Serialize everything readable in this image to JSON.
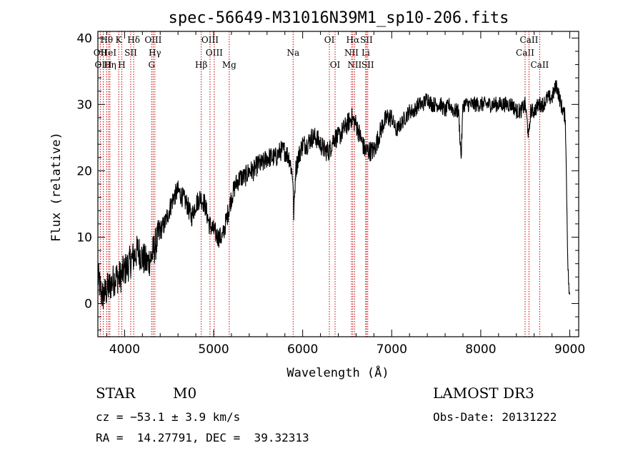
{
  "chart_data": {
    "type": "line",
    "title": "spec-56649-M31016N39M1_sp10-206.fits",
    "xlabel": "Wavelength (Å)",
    "ylabel": "Flux (relative)",
    "xlim": [
      3700,
      9100
    ],
    "ylim": [
      -5,
      41
    ],
    "xticks": [
      4000,
      5000,
      6000,
      7000,
      8000,
      9000
    ],
    "yticks": [
      0,
      10,
      20,
      30,
      40
    ],
    "series": [
      {
        "name": "flux",
        "x": [
          3700,
          3750,
          3800,
          3850,
          3900,
          3950,
          4000,
          4050,
          4100,
          4150,
          4200,
          4250,
          4300,
          4350,
          4400,
          4450,
          4500,
          4550,
          4600,
          4650,
          4700,
          4750,
          4800,
          4850,
          4900,
          4950,
          5000,
          5050,
          5100,
          5150,
          5200,
          5250,
          5300,
          5350,
          5400,
          5450,
          5500,
          5550,
          5600,
          5650,
          5700,
          5750,
          5800,
          5850,
          5890,
          5900,
          5920,
          5950,
          6000,
          6050,
          6100,
          6150,
          6200,
          6250,
          6300,
          6350,
          6400,
          6450,
          6500,
          6550,
          6600,
          6650,
          6700,
          6750,
          6800,
          6850,
          6900,
          6950,
          7000,
          7050,
          7100,
          7150,
          7200,
          7250,
          7300,
          7350,
          7400,
          7450,
          7500,
          7550,
          7600,
          7650,
          7700,
          7750,
          7780,
          7800,
          7850,
          7900,
          7950,
          8000,
          8050,
          8100,
          8150,
          8200,
          8250,
          8300,
          8350,
          8400,
          8450,
          8500,
          8540,
          8560,
          8600,
          8650,
          8700,
          8750,
          8800,
          8850,
          8900,
          8950,
          8980,
          9000
        ],
        "values": [
          4,
          1,
          2,
          3,
          4,
          4,
          5,
          6,
          7,
          8,
          7,
          6,
          7,
          9,
          11,
          12,
          14,
          16,
          17,
          16,
          15,
          13,
          15,
          16,
          15,
          12,
          11,
          10,
          10,
          13,
          16,
          18,
          19,
          19,
          20,
          20,
          21,
          21,
          22,
          22,
          22,
          23,
          23,
          22,
          19,
          13,
          20,
          22,
          24,
          24,
          25,
          25,
          24,
          23,
          23,
          25,
          25,
          26,
          27,
          28,
          27,
          25,
          23,
          23,
          23,
          25,
          27,
          28,
          28,
          26,
          27,
          28,
          29,
          29,
          30,
          30,
          31,
          30,
          30,
          30,
          29,
          30,
          29,
          29,
          22,
          30,
          30,
          30,
          30,
          30,
          30,
          30,
          30,
          30,
          30,
          30,
          30,
          29,
          29,
          30,
          25,
          29,
          29,
          30,
          30,
          31,
          31,
          33,
          30,
          28,
          5,
          0
        ]
      }
    ],
    "lines": [
      {
        "label": "OII",
        "x": 3727,
        "row": 1
      },
      {
        "label": "OIII",
        "x": 3760,
        "row": 2
      },
      {
        "label": "Hθ",
        "x": 3798,
        "row": 0
      },
      {
        "label": "HeI",
        "x": 3820,
        "row": 1
      },
      {
        "label": "Hη",
        "x": 3835,
        "row": 2
      },
      {
        "label": "K",
        "x": 3934,
        "row": 0
      },
      {
        "label": "H",
        "x": 3969,
        "row": 2
      },
      {
        "label": "SII",
        "x": 4069,
        "row": 1
      },
      {
        "label": "Hδ",
        "x": 4102,
        "row": 0
      },
      {
        "label": "G",
        "x": 4304,
        "row": 2
      },
      {
        "label": "OIII",
        "x": 4321,
        "row": 0
      },
      {
        "label": "Hγ",
        "x": 4340,
        "row": 1
      },
      {
        "label": "Hβ",
        "x": 4861,
        "row": 2
      },
      {
        "label": "OIII",
        "x": 4959,
        "row": 0
      },
      {
        "label": "OIII",
        "x": 5007,
        "row": 1
      },
      {
        "label": "Mg",
        "x": 5175,
        "row": 2
      },
      {
        "label": "Na",
        "x": 5893,
        "row": 1
      },
      {
        "label": "OI",
        "x": 6300,
        "row": 0
      },
      {
        "label": "OI",
        "x": 6364,
        "row": 2
      },
      {
        "label": "NII",
        "x": 6548,
        "row": 1
      },
      {
        "label": "Hα",
        "x": 6563,
        "row": 0
      },
      {
        "label": "NII",
        "x": 6583,
        "row": 2
      },
      {
        "label": "Li",
        "x": 6708,
        "row": 1
      },
      {
        "label": "SII",
        "x": 6716,
        "row": 0
      },
      {
        "label": "SII",
        "x": 6731,
        "row": 2
      },
      {
        "label": "CaII",
        "x": 8498,
        "row": 1
      },
      {
        "label": "CaII",
        "x": 8542,
        "row": 0
      },
      {
        "label": "CaII",
        "x": 8662,
        "row": 2
      }
    ]
  },
  "info": {
    "class": "STAR",
    "subclass": "M0",
    "survey": "LAMOST DR3",
    "cz": "cz = −53.1 ± 3.9 km/s",
    "obs_date": "Obs-Date: 20131222",
    "radec": "RA =  14.27791, DEC =  39.32313"
  }
}
